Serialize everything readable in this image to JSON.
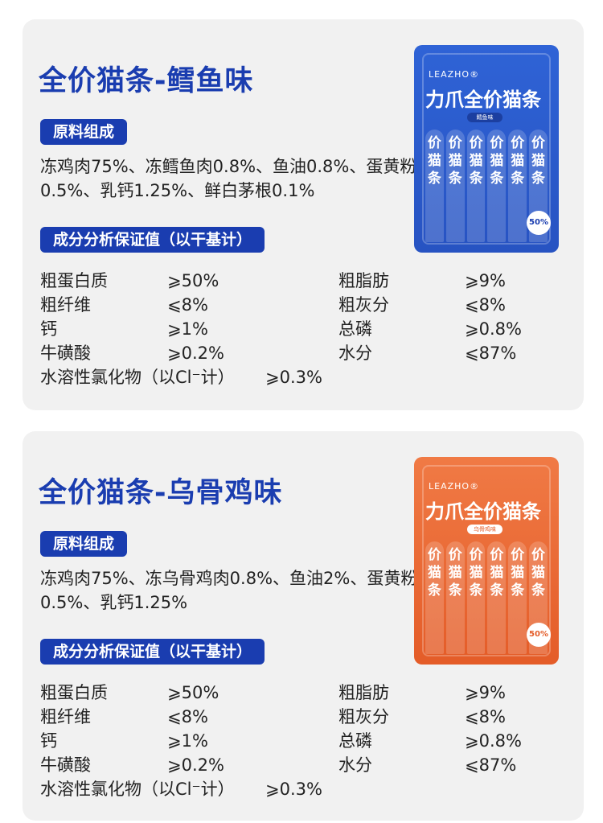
{
  "colors": {
    "accent": "#1a3db0",
    "card": "#f1f1f1",
    "pack_blue": "#2f63d6",
    "pack_orange": "#f07a45"
  },
  "products": [
    {
      "title": "全价猫条-鳕鱼味",
      "ingredients_label": "原料组成",
      "ingredients": "冻鸡肉75%、冻鳕鱼肉0.8%、鱼油0.8%、蛋黄粉0.5%、乳钙1.25%、鲜白茅根0.1%",
      "analysis_label": "成分分析保证值（以干基计）",
      "package": {
        "brand": "LEAZHO®",
        "name": "力爪全价猫条",
        "flavor": "鳕鱼味",
        "stick_text": "价猫条",
        "seal": "50%"
      }
    },
    {
      "title": "全价猫条-乌骨鸡味",
      "ingredients_label": "原料组成",
      "ingredients": "冻鸡肉75%、冻乌骨鸡肉0.8%、鱼油2%、蛋黄粉0.5%、乳钙1.25%",
      "analysis_label": "成分分析保证值（以干基计）",
      "package": {
        "brand": "LEAZHO®",
        "name": "力爪全价猫条",
        "flavor": "乌骨鸡味",
        "stick_text": "价猫条",
        "seal": "50%"
      }
    }
  ],
  "analysis": [
    {
      "n1": "粗蛋白质",
      "v1": "⩾50%",
      "n2": "粗脂肪",
      "v2": "⩾9%"
    },
    {
      "n1": "粗纤维",
      "v1": "⩽8%",
      "n2": "粗灰分",
      "v2": "⩽8%"
    },
    {
      "n1": "钙",
      "v1": "⩾1%",
      "n2": "总磷",
      "v2": "⩾0.8%"
    },
    {
      "n1": "牛磺酸",
      "v1": "⩾0.2%",
      "n2": "水分",
      "v2": "⩽87%"
    }
  ],
  "chloride": {
    "name": "水溶性氯化物（以Cl⁻计）",
    "value": "⩾0.3%"
  }
}
